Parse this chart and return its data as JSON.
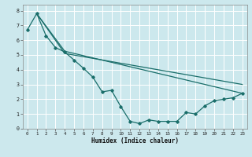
{
  "xlabel": "Humidex (Indice chaleur)",
  "bg_color": "#cce8ed",
  "grid_color": "#ffffff",
  "line_color": "#1a6e6a",
  "xlim": [
    -0.5,
    23.5
  ],
  "ylim": [
    0,
    8.4
  ],
  "xticks": [
    0,
    1,
    2,
    3,
    4,
    5,
    6,
    7,
    8,
    9,
    10,
    11,
    12,
    13,
    14,
    15,
    16,
    17,
    18,
    19,
    20,
    21,
    22,
    23
  ],
  "yticks": [
    0,
    1,
    2,
    3,
    4,
    5,
    6,
    7,
    8
  ],
  "series": {
    "line1_x": [
      0,
      1,
      2,
      3,
      4,
      5,
      6,
      7,
      8,
      9,
      10,
      11,
      12,
      13,
      14,
      15,
      16,
      17,
      18,
      19,
      20,
      21,
      22,
      23
    ],
    "line1_y": [
      6.7,
      7.8,
      6.3,
      5.5,
      5.2,
      4.65,
      4.1,
      3.5,
      2.5,
      2.6,
      1.5,
      0.5,
      0.35,
      0.6,
      0.5,
      0.5,
      0.5,
      1.1,
      1.0,
      1.55,
      1.9,
      2.0,
      2.1,
      2.4
    ],
    "line2_x": [
      1,
      4,
      23
    ],
    "line2_y": [
      7.8,
      5.25,
      2.4
    ],
    "line3_x": [
      1,
      4,
      23
    ],
    "line3_y": [
      7.8,
      5.1,
      3.0
    ]
  }
}
